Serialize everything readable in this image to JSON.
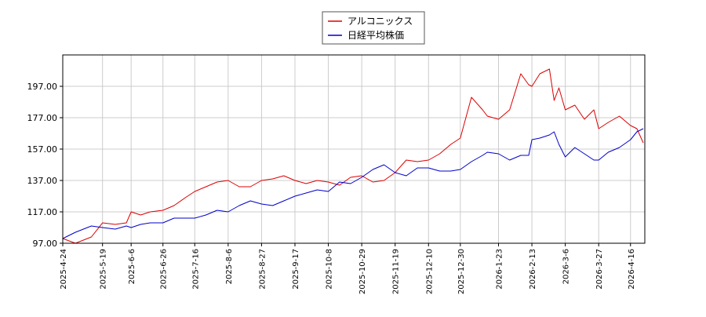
{
  "chart_data": {
    "type": "line",
    "title": "",
    "xlabel": "",
    "ylabel": "",
    "ylim": [
      97,
      217
    ],
    "y_ticks": [
      "97.00",
      "117.00",
      "137.00",
      "157.00",
      "177.00",
      "197.00"
    ],
    "x_ticks": [
      "2025-4-24",
      "2025-5-19",
      "2025-6-6",
      "2025-6-26",
      "2025-7-16",
      "2025-8-6",
      "2025-8-27",
      "2025-9-17",
      "2025-10-8",
      "2025-10-29",
      "2025-11-19",
      "2025-12-10",
      "2025-12-30",
      "2026-1-23",
      "2026-2-13",
      "2026-3-6",
      "2026-3-27",
      "2026-4-16"
    ],
    "grid": true,
    "legend_position": "top-center",
    "series": [
      {
        "name": "アルコニックス",
        "color": "#dd0000",
        "x": [
          "2025-4-24",
          "2025-5-2",
          "2025-5-12",
          "2025-5-19",
          "2025-5-27",
          "2025-6-3",
          "2025-6-6",
          "2025-6-12",
          "2025-6-18",
          "2025-6-26",
          "2025-7-3",
          "2025-7-10",
          "2025-7-16",
          "2025-7-23",
          "2025-7-30",
          "2025-8-6",
          "2025-8-13",
          "2025-8-20",
          "2025-8-27",
          "2025-9-3",
          "2025-9-10",
          "2025-9-17",
          "2025-9-24",
          "2025-10-1",
          "2025-10-8",
          "2025-10-15",
          "2025-10-22",
          "2025-10-29",
          "2025-11-5",
          "2025-11-12",
          "2025-11-19",
          "2025-11-26",
          "2025-12-3",
          "2025-12-10",
          "2025-12-17",
          "2025-12-24",
          "2025-12-30",
          "2026-1-6",
          "2026-1-13",
          "2026-1-16",
          "2026-1-23",
          "2026-1-30",
          "2026-2-6",
          "2026-2-11",
          "2026-2-13",
          "2026-2-18",
          "2026-2-24",
          "2026-2-27",
          "2026-3-2",
          "2026-3-6",
          "2026-3-12",
          "2026-3-18",
          "2026-3-24",
          "2026-3-27",
          "2026-4-2",
          "2026-4-9",
          "2026-4-16",
          "2026-4-20",
          "2026-4-24"
        ],
        "values": [
          100,
          97,
          101,
          110,
          109,
          110,
          117,
          115,
          117,
          118,
          121,
          126,
          130,
          133,
          136,
          137,
          133,
          133,
          137,
          138,
          140,
          137,
          135,
          137,
          136,
          134,
          139,
          140,
          136,
          137,
          142,
          150,
          149,
          150,
          154,
          160,
          164,
          190,
          182,
          178,
          176,
          182,
          205,
          198,
          197,
          205,
          208,
          188,
          196,
          182,
          185,
          176,
          182,
          170,
          174,
          178,
          172,
          170,
          161
        ]
      },
      {
        "name": "日経平均株価",
        "color": "#0000cc",
        "x": [
          "2025-4-24",
          "2025-5-2",
          "2025-5-12",
          "2025-5-19",
          "2025-5-27",
          "2025-6-3",
          "2025-6-6",
          "2025-6-12",
          "2025-6-18",
          "2025-6-26",
          "2025-7-3",
          "2025-7-10",
          "2025-7-16",
          "2025-7-23",
          "2025-7-30",
          "2025-8-6",
          "2025-8-13",
          "2025-8-20",
          "2025-8-27",
          "2025-9-3",
          "2025-9-10",
          "2025-9-17",
          "2025-9-24",
          "2025-10-1",
          "2025-10-8",
          "2025-10-15",
          "2025-10-22",
          "2025-10-29",
          "2025-11-5",
          "2025-11-12",
          "2025-11-19",
          "2025-11-26",
          "2025-12-3",
          "2025-12-10",
          "2025-12-17",
          "2025-12-24",
          "2025-12-30",
          "2026-1-6",
          "2026-1-13",
          "2026-1-16",
          "2026-1-23",
          "2026-1-30",
          "2026-2-6",
          "2026-2-11",
          "2026-2-13",
          "2026-2-18",
          "2026-2-24",
          "2026-2-27",
          "2026-3-2",
          "2026-3-6",
          "2026-3-12",
          "2026-3-18",
          "2026-3-24",
          "2026-3-27",
          "2026-4-2",
          "2026-4-9",
          "2026-4-16",
          "2026-4-20",
          "2026-4-24"
        ],
        "values": [
          100,
          104,
          108,
          107,
          106,
          108,
          107,
          109,
          110,
          110,
          113,
          113,
          113,
          115,
          118,
          117,
          121,
          124,
          122,
          121,
          124,
          127,
          129,
          131,
          130,
          136,
          135,
          139,
          144,
          147,
          142,
          140,
          145,
          145,
          143,
          143,
          144,
          149,
          153,
          155,
          154,
          150,
          153,
          153,
          163,
          164,
          166,
          168,
          160,
          152,
          158,
          154,
          150,
          150,
          155,
          158,
          163,
          168,
          170
        ]
      }
    ]
  }
}
